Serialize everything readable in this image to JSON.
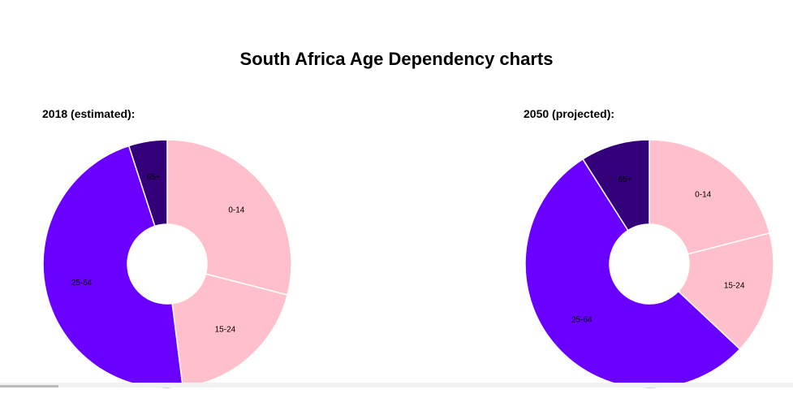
{
  "page": {
    "title": "South Africa Age Dependency charts"
  },
  "chart_data": [
    {
      "type": "pie",
      "title": "2018 (estimated):",
      "categories": [
        "0-14",
        "15-24",
        "25-64",
        "65+"
      ],
      "values": [
        29,
        19,
        47,
        5
      ],
      "colors": [
        "#ffc0cb",
        "#ffc0cb",
        "#6a00ff",
        "#33007a"
      ],
      "donut": true
    },
    {
      "type": "pie",
      "title": "2050 (projected):",
      "categories": [
        "0-14",
        "15-24",
        "25-64",
        "65+"
      ],
      "values": [
        21,
        16,
        54,
        9
      ],
      "colors": [
        "#ffc0cb",
        "#ffc0cb",
        "#6a00ff",
        "#33007a"
      ],
      "donut": true
    }
  ]
}
